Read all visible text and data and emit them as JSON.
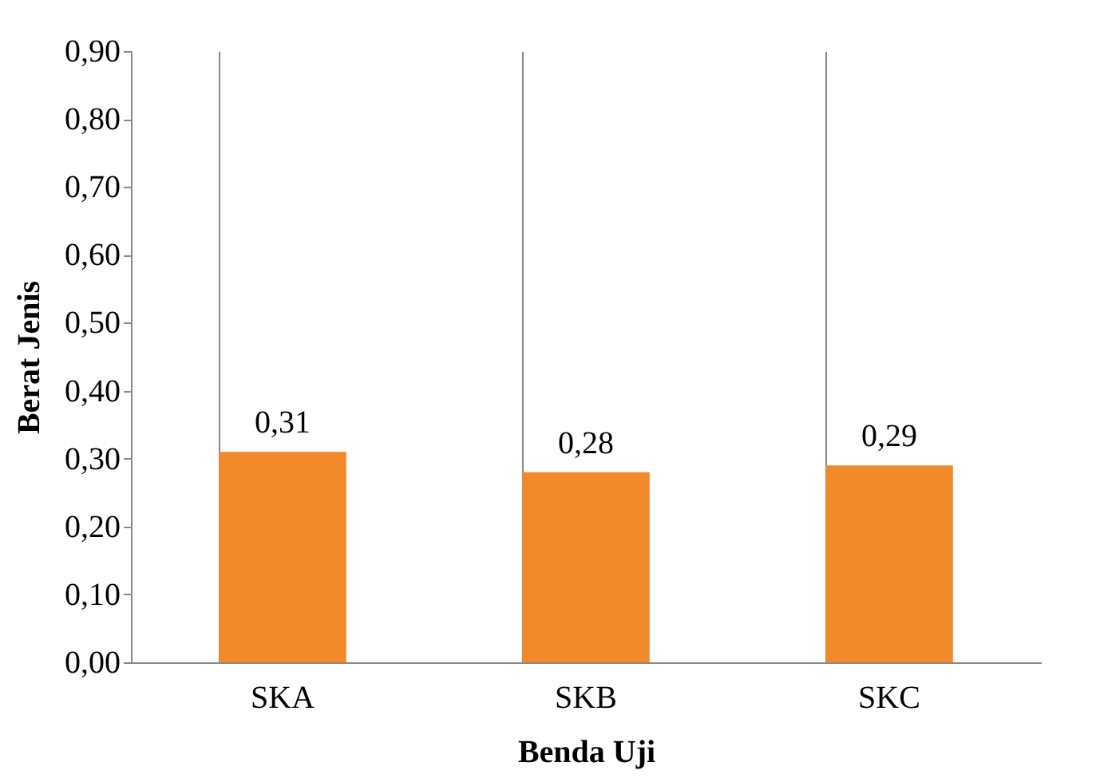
{
  "chart_data": {
    "type": "bar",
    "xlabel": "Benda Uji",
    "ylabel": "Berat Jenis",
    "categories": [
      "SKA",
      "SKB",
      "SKC"
    ],
    "values": [
      0.31,
      0.28,
      0.29
    ],
    "value_labels": [
      "0,31",
      "0,28",
      "0,29"
    ],
    "color": "#f28a2c",
    "ylim": [
      0,
      0.9
    ],
    "yticks": [
      {
        "value": 0,
        "label": "0,00"
      },
      {
        "value": 0.1,
        "label": "0,10"
      },
      {
        "value": 0.2,
        "label": "0,20"
      },
      {
        "value": 0.3,
        "label": "0,30"
      },
      {
        "value": 0.4,
        "label": "0,40"
      },
      {
        "value": 0.5,
        "label": "0,50"
      },
      {
        "value": 0.6,
        "label": "0,60"
      },
      {
        "value": 0.7,
        "label": "0,70"
      },
      {
        "value": 0.8,
        "label": "0,80"
      },
      {
        "value": 0.9,
        "label": "0,90"
      }
    ],
    "grid": "x"
  }
}
